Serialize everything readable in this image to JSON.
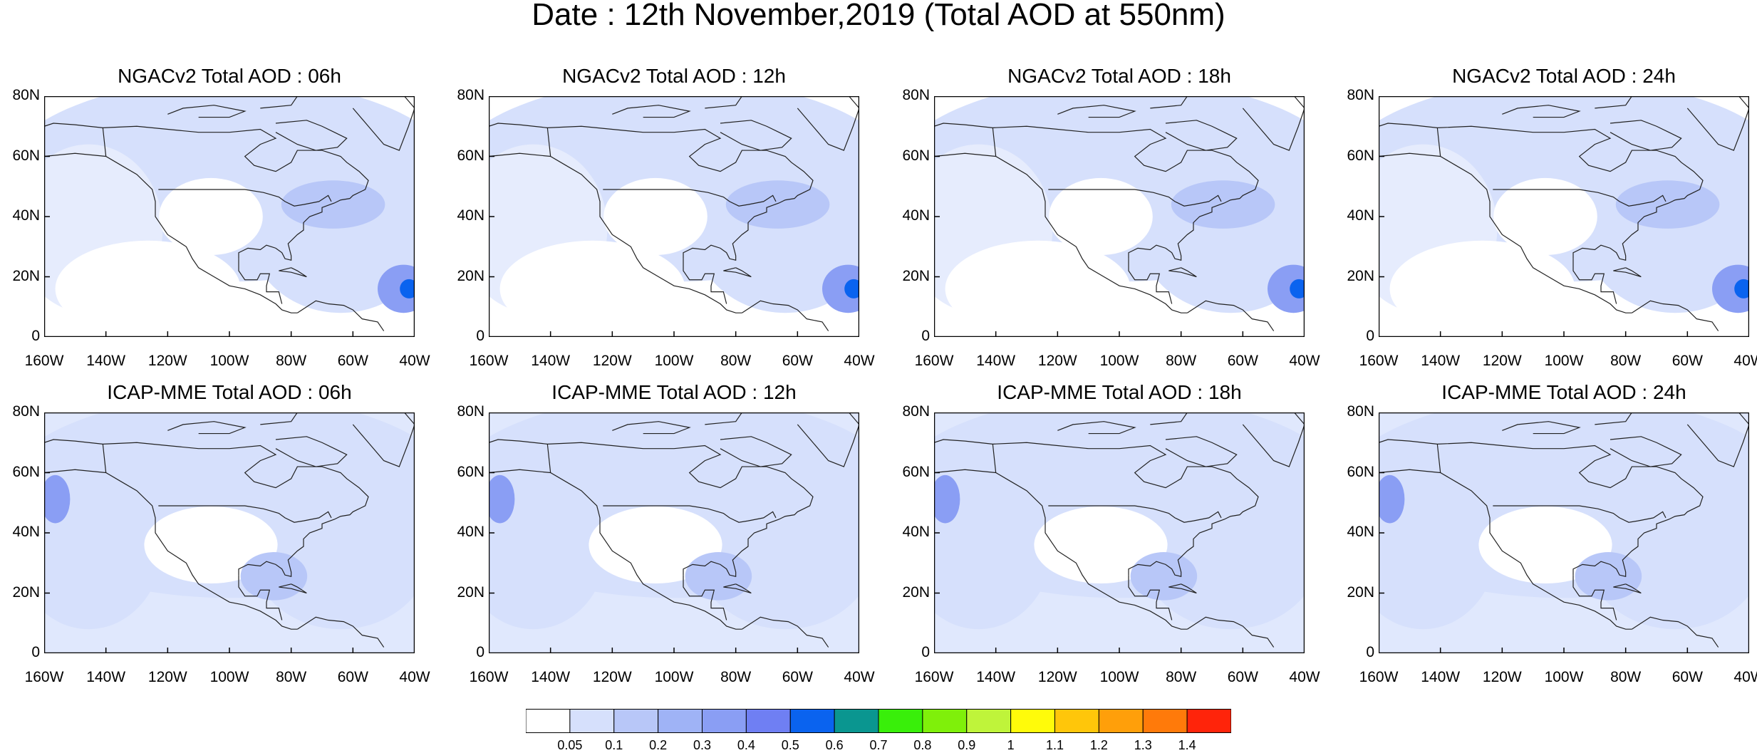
{
  "title": "Date : 12th November,2019 (Total AOD at 550nm)",
  "axes": {
    "lat_labels": [
      "80N",
      "60N",
      "40N",
      "20N",
      "0"
    ],
    "lon_labels": [
      "160W",
      "140W",
      "120W",
      "100W",
      "80W",
      "60W",
      "40W"
    ]
  },
  "panels": [
    {
      "title": "NGACv2 Total AOD : 06h",
      "model": "NGACv2",
      "hour": "06h"
    },
    {
      "title": "NGACv2 Total AOD : 12h",
      "model": "NGACv2",
      "hour": "12h"
    },
    {
      "title": "NGACv2 Total AOD : 18h",
      "model": "NGACv2",
      "hour": "18h"
    },
    {
      "title": "NGACv2 Total AOD : 24h",
      "model": "NGACv2",
      "hour": "24h"
    },
    {
      "title": "ICAP-MME Total AOD : 06h",
      "model": "ICAP-MME",
      "hour": "06h"
    },
    {
      "title": "ICAP-MME Total AOD : 12h",
      "model": "ICAP-MME",
      "hour": "12h"
    },
    {
      "title": "ICAP-MME Total AOD : 18h",
      "model": "ICAP-MME",
      "hour": "18h"
    },
    {
      "title": "ICAP-MME Total AOD : 24h",
      "model": "ICAP-MME",
      "hour": "24h"
    }
  ],
  "colorbar": {
    "labels": [
      "0.05",
      "0.1",
      "0.2",
      "0.3",
      "0.4",
      "0.5",
      "0.6",
      "0.7",
      "0.8",
      "0.9",
      "1",
      "1.1",
      "1.2",
      "1.3",
      "1.4"
    ],
    "colors": [
      "#ffffff",
      "#d6e0fc",
      "#b8c7f8",
      "#9fb3f6",
      "#8a9ef4",
      "#6f7ff3",
      "#0a63ef",
      "#0a9690",
      "#39ef0a",
      "#7ff00a",
      "#bff43a",
      "#fffb0a",
      "#ffc60a",
      "#ff9f0a",
      "#ff7a0a",
      "#ff240a"
    ]
  },
  "map_colors": {
    "ocean_low": "#d6e0fc",
    "ocean_mid": "#b8c7f8",
    "plume": "#8a9ef4",
    "plume_core": "#0a63ef"
  }
}
